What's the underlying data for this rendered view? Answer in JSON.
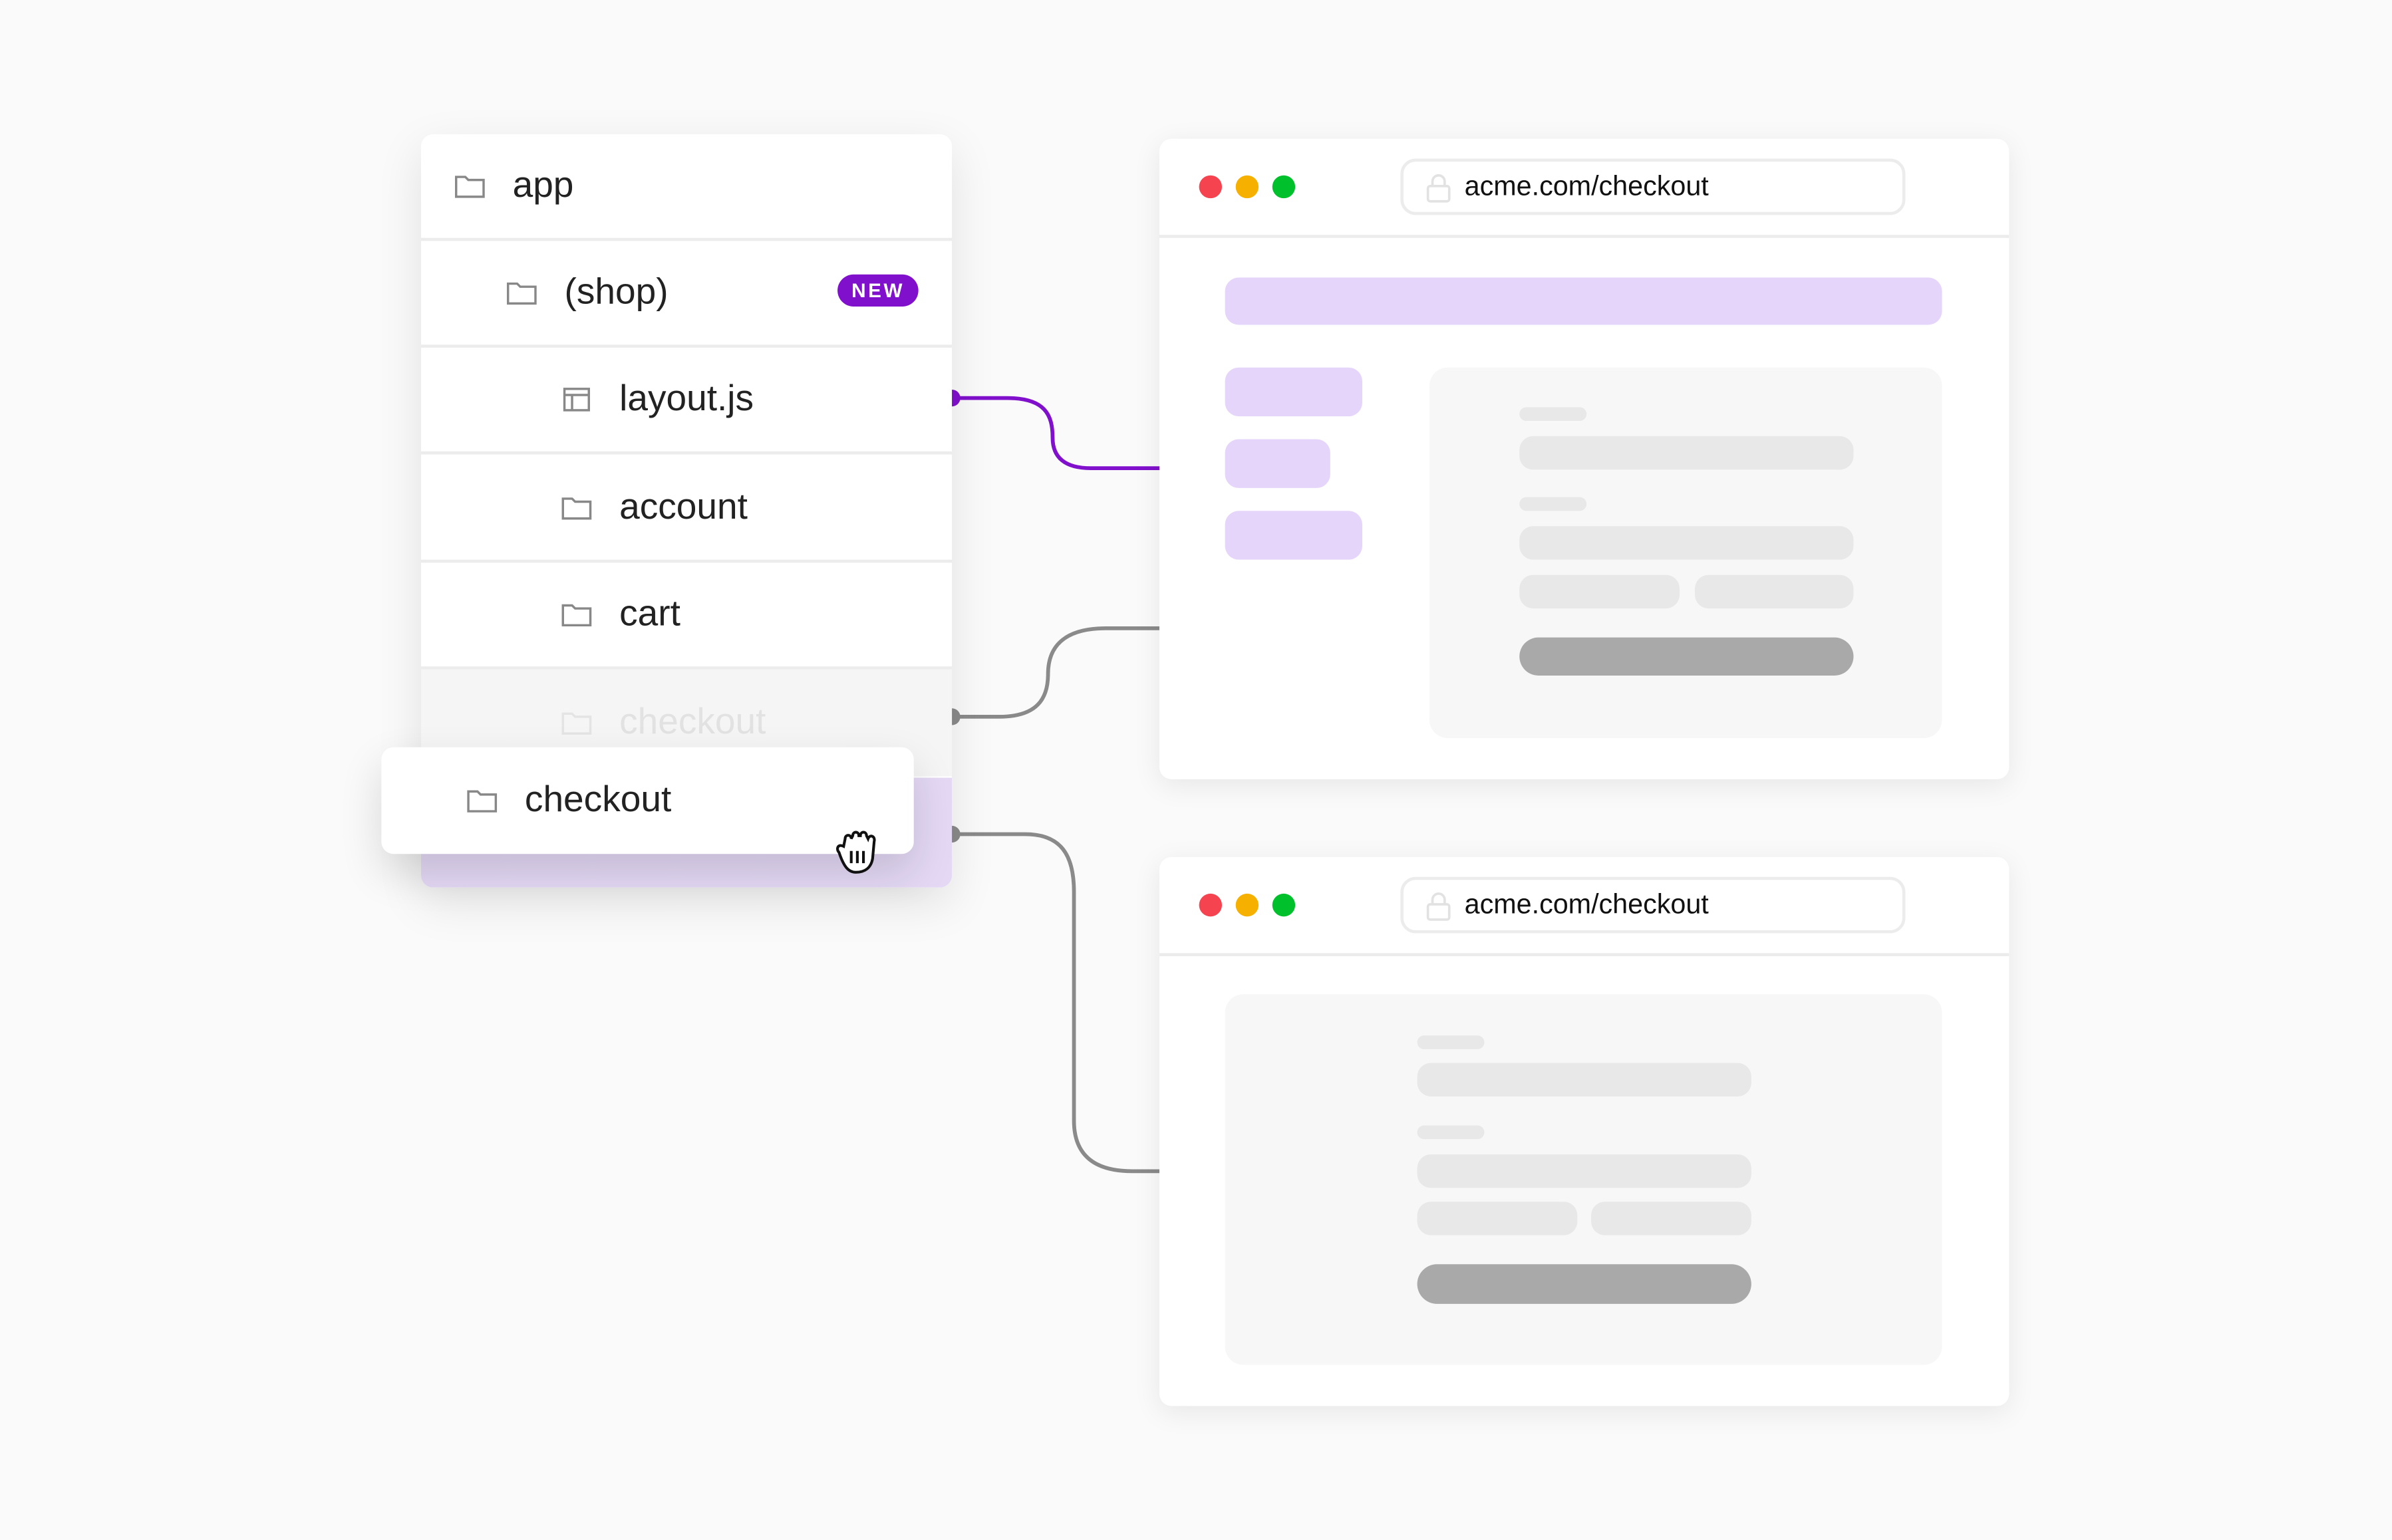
{
  "file_tree": {
    "items": [
      {
        "label": "app",
        "icon": "folder-icon",
        "depth": 0
      },
      {
        "label": "(shop)",
        "icon": "folder-icon",
        "depth": 1,
        "badge": "NEW"
      },
      {
        "label": "layout.js",
        "icon": "layout-file-icon",
        "depth": 2
      },
      {
        "label": "account",
        "icon": "folder-icon",
        "depth": 2
      },
      {
        "label": "cart",
        "icon": "folder-icon",
        "depth": 2
      },
      {
        "label": "checkout",
        "icon": "folder-icon",
        "depth": 2,
        "state": "ghost"
      }
    ],
    "dragged_item": {
      "label": "checkout",
      "icon": "folder-icon",
      "cursor": "grab-hand-icon"
    }
  },
  "browsers": [
    {
      "url": "acme.com/checkout",
      "layout": "with-shop-layout"
    },
    {
      "url": "acme.com/checkout",
      "layout": "without-shop-layout"
    }
  ],
  "colors": {
    "accent": "#8010cc",
    "accent_light": "#e6d5fb",
    "connector_gray": "#8a8a8a",
    "dot_red": "#f5434f",
    "dot_yellow": "#f5b000",
    "dot_green": "#00c12b"
  }
}
